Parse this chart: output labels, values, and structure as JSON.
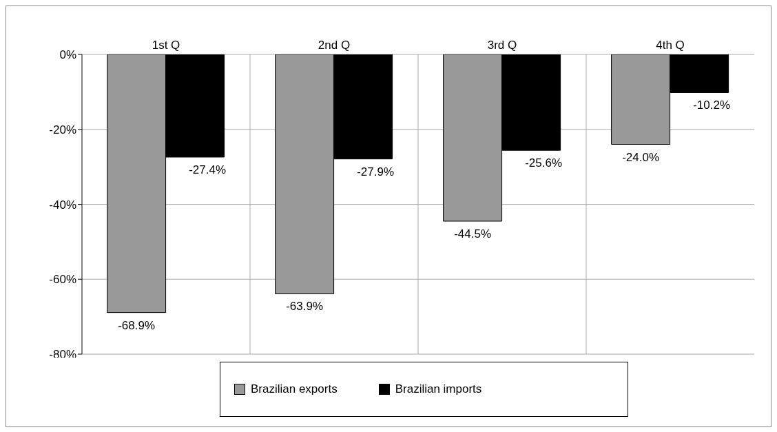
{
  "chart_data": {
    "type": "bar",
    "categories": [
      "1st Q",
      "2nd Q",
      "3rd Q",
      "4th Q"
    ],
    "series": [
      {
        "name": "Brazilian exports",
        "color": "#999999",
        "values": [
          -68.9,
          -63.9,
          -44.5,
          -24.0
        ],
        "value_labels": [
          "-68.9%",
          "-63.9%",
          "-44.5%",
          "-24.0%"
        ]
      },
      {
        "name": "Brazilian imports",
        "color": "#000000",
        "values": [
          -27.4,
          -27.9,
          -25.6,
          -10.2
        ],
        "value_labels": [
          "-27.4%",
          "-27.9%",
          "-25.6%",
          "-10.2%"
        ]
      }
    ],
    "ylim": [
      -80,
      0
    ],
    "yticks": [
      {
        "value": 0,
        "label": "0%"
      },
      {
        "value": -20,
        "label": "-20%"
      },
      {
        "value": -40,
        "label": "-40%"
      },
      {
        "value": -60,
        "label": "-60%"
      },
      {
        "value": -80,
        "label": "-80%"
      }
    ],
    "grid": true,
    "legend": "bottom"
  }
}
